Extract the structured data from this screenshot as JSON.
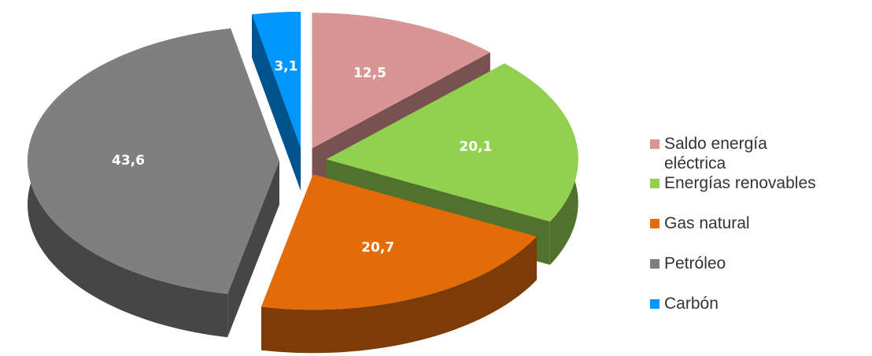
{
  "chart_data": {
    "type": "pie",
    "categories": [
      "Saldo energía eléctrica",
      "Energías renovables",
      "Gas natural",
      "Petróleo",
      "Carbón"
    ],
    "values": [
      12.5,
      20.1,
      20.7,
      43.6,
      3.1
    ],
    "value_labels": [
      "12,5",
      "20,1",
      "20,7",
      "43,6",
      "3,1"
    ],
    "colors": [
      "#d99594",
      "#92d050",
      "#e36c09",
      "#7f7f7f",
      "#0096ff"
    ],
    "legend": "right"
  }
}
